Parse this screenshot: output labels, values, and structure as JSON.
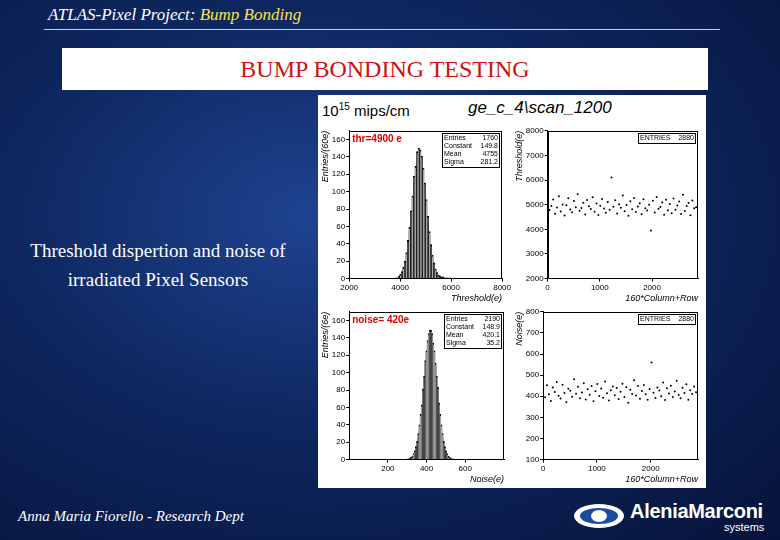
{
  "slide": {
    "header_project": "ATLAS-Pixel Project:",
    "header_topic": "Bump Bonding",
    "title": "BUMP BONDING TESTING",
    "description": "Threshold dispertion and noise of irradiated Pixel Sensors",
    "fluence_base": "10",
    "fluence_exponent": "15",
    "fluence_unit": "mips/cm",
    "scan_name": "ge_c_4\\scan_1200",
    "author": "Anna Maria Fiorello - Research Dept",
    "logo": {
      "name_part1": "Alenia",
      "name_part2": "Marconi",
      "tagline": "systems"
    }
  },
  "chart_data": [
    {
      "type": "histogram",
      "x_label": "Threshold(e)",
      "y_label": "Entries/(60e)",
      "color": "#000000",
      "grid": false,
      "annotation": "thr=4900 e",
      "stats": [
        {
          "label": "Entries",
          "value": "1760"
        },
        {
          "label": "Constant",
          "value": "149.8"
        },
        {
          "label": "Mean",
          "value": "4755"
        },
        {
          "label": "Sigma",
          "value": "281.2"
        }
      ],
      "bins": [
        3800,
        3860,
        3920,
        3980,
        4040,
        4100,
        4160,
        4220,
        4280,
        4340,
        4400,
        4460,
        4520,
        4580,
        4640,
        4700,
        4760,
        4820,
        4880,
        4940,
        5000,
        5060,
        5120,
        5180,
        5240,
        5300,
        5360,
        5420,
        5480,
        5540,
        5600,
        5660,
        5720,
        5780,
        5840,
        5900,
        5960,
        6020,
        6080,
        6140,
        6200
      ],
      "values": [
        1,
        1,
        3,
        5,
        8,
        13,
        20,
        30,
        44,
        59,
        78,
        95,
        118,
        129,
        146,
        150,
        148,
        141,
        127,
        110,
        91,
        72,
        54,
        39,
        27,
        18,
        11,
        7,
        4,
        3,
        2,
        2,
        1,
        1,
        1,
        0,
        1,
        0,
        0,
        0
      ],
      "xlim": [
        2000,
        8000
      ],
      "xticks": [
        2000,
        4000,
        6000,
        8000
      ],
      "ylim": [
        0,
        170
      ],
      "yticks": [
        0,
        20,
        40,
        60,
        80,
        100,
        120,
        140,
        160
      ]
    },
    {
      "type": "scatter",
      "x_label": "160*Column+Row",
      "y_label": "Threshold(e)",
      "color": "#000000",
      "grid": false,
      "marker": "dot",
      "stats": [
        {
          "label": "ENTRIES",
          "value": "2880"
        }
      ],
      "x": [
        0,
        36,
        72,
        108,
        144,
        180,
        216,
        252,
        288,
        324,
        360,
        396,
        432,
        468,
        504,
        540,
        576,
        612,
        648,
        684,
        720,
        756,
        792,
        828,
        864,
        900,
        936,
        972,
        1008,
        1044,
        1080,
        1116,
        1152,
        1188,
        1224,
        1260,
        1296,
        1332,
        1368,
        1404,
        1440,
        1476,
        1512,
        1548,
        1584,
        1620,
        1656,
        1692,
        1728,
        1764,
        1800,
        1836,
        1872,
        1908,
        1944,
        1980,
        2016,
        2052,
        2088,
        2124,
        2160,
        2196,
        2232,
        2268,
        2304,
        2340,
        2376,
        2412,
        2448,
        2484,
        2520,
        2556,
        2592,
        2628,
        2664,
        2700,
        2736,
        2772,
        2808,
        2844
      ],
      "values": [
        5120,
        4780,
        4950,
        5210,
        4630,
        4890,
        5340,
        4720,
        5010,
        4560,
        4980,
        5260,
        4810,
        4690,
        5150,
        4900,
        5420,
        4750,
        4870,
        5080,
        4600,
        5190,
        4940,
        4830,
        5300,
        4710,
        5050,
        4580,
        4960,
        5230,
        4850,
        4670,
        5110,
        4790,
        6100,
        4920,
        5180,
        4640,
        5020,
        4880,
        5370,
        4730,
        4990,
        4550,
        5140,
        4820,
        5270,
        4700,
        4930,
        5060,
        4610,
        5220,
        4860,
        4760,
        5000,
        3950,
        5160,
        4680,
        5310,
        4840,
        4910,
        5090,
        4590,
        5200,
        4770,
        5030,
        4650,
        5250,
        4800,
        4970,
        5130,
        4620,
        5400,
        4740,
        4950,
        5070,
        4570,
        5170,
        4860,
        4900
      ],
      "xlim": [
        0,
        2880
      ],
      "xticks": [
        0,
        1000,
        2000
      ],
      "ylim": [
        2000,
        8000
      ],
      "yticks": [
        2000,
        3000,
        4000,
        5000,
        6000,
        7000,
        8000
      ]
    },
    {
      "type": "histogram",
      "x_label": "Noise(e)",
      "y_label": "Entries/(6e)",
      "color": "#000000",
      "grid": false,
      "annotation": "noise= 420e",
      "stats": [
        {
          "label": "Entries",
          "value": "2190"
        },
        {
          "label": "Constant",
          "value": "148.9"
        },
        {
          "label": "Mean",
          "value": "420.1"
        },
        {
          "label": "Sigma",
          "value": "35.2"
        }
      ],
      "bins": [
        300,
        306,
        312,
        318,
        324,
        330,
        336,
        342,
        348,
        354,
        360,
        366,
        372,
        378,
        384,
        390,
        396,
        402,
        408,
        414,
        420,
        426,
        432,
        438,
        444,
        450,
        456,
        462,
        468,
        474,
        480,
        486,
        492,
        498,
        504,
        510,
        516,
        522,
        528,
        534,
        540
      ],
      "values": [
        1,
        1,
        2,
        3,
        4,
        7,
        10,
        15,
        21,
        30,
        40,
        52,
        63,
        81,
        96,
        114,
        125,
        137,
        145,
        149,
        149,
        145,
        134,
        125,
        111,
        96,
        83,
        65,
        52,
        40,
        30,
        21,
        15,
        10,
        7,
        4,
        3,
        2,
        1,
        1
      ],
      "xlim": [
        0,
        800
      ],
      "xticks": [
        200,
        400,
        600
      ],
      "ylim": [
        0,
        170
      ],
      "yticks": [
        0,
        20,
        40,
        60,
        80,
        100,
        120,
        140,
        160
      ]
    },
    {
      "type": "scatter",
      "x_label": "160*Column+Row",
      "y_label": "Noise(e)",
      "color": "#000000",
      "grid": false,
      "marker": "dot",
      "stats": [
        {
          "label": "ENTRIES",
          "value": "2880"
        }
      ],
      "x": [
        0,
        36,
        72,
        108,
        144,
        180,
        216,
        252,
        288,
        324,
        360,
        396,
        432,
        468,
        504,
        540,
        576,
        612,
        648,
        684,
        720,
        756,
        792,
        828,
        864,
        900,
        936,
        972,
        1008,
        1044,
        1080,
        1116,
        1152,
        1188,
        1224,
        1260,
        1296,
        1332,
        1368,
        1404,
        1440,
        1476,
        1512,
        1548,
        1584,
        1620,
        1656,
        1692,
        1728,
        1764,
        1800,
        1836,
        1872,
        1908,
        1944,
        1980,
        2016,
        2052,
        2088,
        2124,
        2160,
        2196,
        2232,
        2268,
        2304,
        2340,
        2376,
        2412,
        2448,
        2484,
        2520,
        2556,
        2592,
        2628,
        2664,
        2700,
        2736,
        2772,
        2808,
        2844
      ],
      "values": [
        430,
        395,
        452,
        410,
        378,
        441,
        420,
        467,
        402,
        389,
        455,
        415,
        372,
        436,
        426,
        398,
        480,
        412,
        445,
        391,
        418,
        462,
        385,
        433,
        407,
        449,
        376,
        424,
        458,
        401,
        437,
        393,
        470,
        414,
        380,
        428,
        446,
        405,
        439,
        387,
        421,
        459,
        396,
        443,
        369,
        431,
        411,
        476,
        403,
        448,
        388,
        425,
        453,
        409,
        384,
        434,
        560,
        417,
        392,
        442,
        427,
        400,
        465,
        382,
        438,
        413,
        450,
        397,
        422,
        474,
        406,
        390,
        440,
        416,
        457,
        383,
        429,
        411,
        446,
        419
      ],
      "xlim": [
        0,
        2880
      ],
      "xticks": [
        0,
        1000,
        2000
      ],
      "ylim": [
        100,
        800
      ],
      "yticks": [
        100,
        200,
        300,
        400,
        500,
        600,
        700,
        800
      ]
    }
  ]
}
